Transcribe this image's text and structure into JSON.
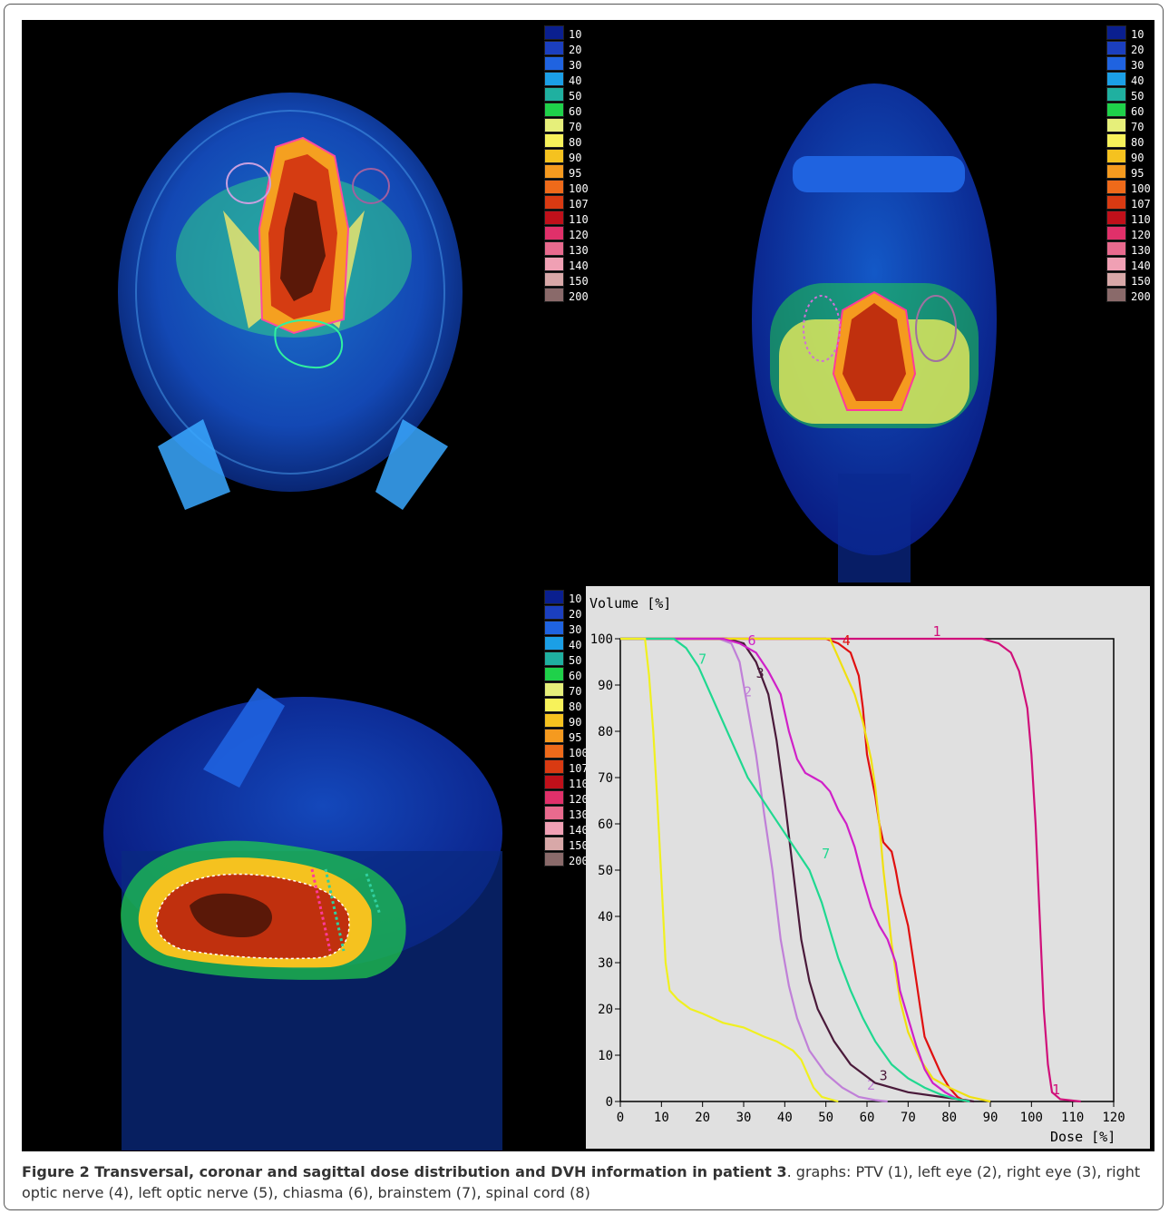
{
  "figure": {
    "legend_levels": [
      "10",
      "20",
      "30",
      "40",
      "50",
      "60",
      "70",
      "80",
      "90",
      "95",
      "100",
      "107",
      "110",
      "120",
      "130",
      "140",
      "150",
      "200"
    ],
    "legend_colors": [
      "#0a1f8f",
      "#1b3fbf",
      "#1f63e0",
      "#1b9fe6",
      "#1fb0a0",
      "#1fd14a",
      "#e6ef7a",
      "#f7f25a",
      "#f5c21f",
      "#f59a1f",
      "#ee6a1a",
      "#d93a12",
      "#c0101a",
      "#e0306a",
      "#e86a8e",
      "#f0a0b4",
      "#d8a8a8",
      "#8a6a6a"
    ]
  },
  "chart_data": {
    "type": "line",
    "ylabel": "Volume [%]",
    "xlabel": "Dose [%]",
    "xlim": [
      0,
      120
    ],
    "ylim": [
      0,
      100
    ],
    "x_ticks": [
      0,
      10,
      20,
      30,
      40,
      50,
      60,
      70,
      80,
      90,
      100,
      110,
      120
    ],
    "y_ticks": [
      0,
      10,
      20,
      30,
      40,
      50,
      60,
      70,
      80,
      90,
      100
    ],
    "grid": false,
    "series": [
      {
        "name": "1",
        "color": "#d0107a",
        "label_at": [
          76,
          100
        ],
        "label_end": [
          105,
          1
        ],
        "points": [
          [
            0,
            100
          ],
          [
            78,
            100
          ],
          [
            88,
            100
          ],
          [
            92,
            99
          ],
          [
            95,
            97
          ],
          [
            97,
            93
          ],
          [
            99,
            85
          ],
          [
            100,
            75
          ],
          [
            101,
            60
          ],
          [
            102,
            40
          ],
          [
            103,
            20
          ],
          [
            104,
            8
          ],
          [
            105,
            2
          ],
          [
            107,
            0.5
          ],
          [
            112,
            0
          ]
        ]
      },
      {
        "name": "2",
        "color": "#c080d8",
        "label_at": [
          30,
          87
        ],
        "label_end": [
          60,
          2
        ],
        "points": [
          [
            0,
            100
          ],
          [
            24,
            100
          ],
          [
            27,
            99
          ],
          [
            29,
            95
          ],
          [
            31,
            85
          ],
          [
            33,
            75
          ],
          [
            35,
            62
          ],
          [
            37,
            50
          ],
          [
            39,
            35
          ],
          [
            41,
            25
          ],
          [
            43,
            18
          ],
          [
            46,
            11
          ],
          [
            50,
            6
          ],
          [
            54,
            3
          ],
          [
            58,
            1
          ],
          [
            62,
            0.3
          ],
          [
            65,
            0
          ]
        ]
      },
      {
        "name": "3",
        "color": "#4a1a3a",
        "label_at": [
          33,
          91
        ],
        "label_end": [
          63,
          4
        ],
        "points": [
          [
            0,
            100
          ],
          [
            26,
            100
          ],
          [
            30,
            99
          ],
          [
            33,
            95
          ],
          [
            36,
            88
          ],
          [
            38,
            78
          ],
          [
            40,
            65
          ],
          [
            42,
            50
          ],
          [
            44,
            35
          ],
          [
            46,
            26
          ],
          [
            48,
            20
          ],
          [
            52,
            13
          ],
          [
            56,
            8
          ],
          [
            62,
            4
          ],
          [
            70,
            2
          ],
          [
            78,
            1
          ],
          [
            84,
            0.3
          ],
          [
            86,
            0
          ]
        ]
      },
      {
        "name": "4",
        "color": "#e01010",
        "label_at": [
          54,
          98
        ],
        "label_end": null,
        "points": [
          [
            0,
            100
          ],
          [
            50,
            100
          ],
          [
            53,
            99
          ],
          [
            56,
            97
          ],
          [
            58,
            92
          ],
          [
            59,
            85
          ],
          [
            60,
            75
          ],
          [
            62,
            66
          ],
          [
            63,
            60
          ],
          [
            64,
            56
          ],
          [
            66,
            54
          ],
          [
            67,
            50
          ],
          [
            68,
            45
          ],
          [
            70,
            38
          ],
          [
            71,
            32
          ],
          [
            72,
            26
          ],
          [
            73,
            20
          ],
          [
            74,
            14
          ],
          [
            76,
            10
          ],
          [
            78,
            6
          ],
          [
            80,
            3
          ],
          [
            82,
            1
          ],
          [
            84,
            0
          ]
        ]
      },
      {
        "name": "5",
        "color": "#f0e010",
        "label_at": null,
        "label_end": null,
        "points": [
          [
            0,
            100
          ],
          [
            51,
            100
          ],
          [
            53,
            96
          ],
          [
            55,
            92
          ],
          [
            57,
            88
          ],
          [
            59,
            82
          ],
          [
            60,
            78
          ],
          [
            61,
            74
          ],
          [
            62,
            68
          ],
          [
            63,
            60
          ],
          [
            64,
            50
          ],
          [
            65,
            42
          ],
          [
            66,
            34
          ],
          [
            67,
            28
          ],
          [
            68,
            22
          ],
          [
            70,
            15
          ],
          [
            73,
            9
          ],
          [
            76,
            5
          ],
          [
            80,
            3
          ],
          [
            85,
            1
          ],
          [
            90,
            0
          ]
        ]
      },
      {
        "name": "6",
        "color": "#d020c8",
        "label_at": [
          31,
          98
        ],
        "label_end": null,
        "points": [
          [
            0,
            100
          ],
          [
            25,
            100
          ],
          [
            29,
            99
          ],
          [
            33,
            97
          ],
          [
            36,
            93
          ],
          [
            39,
            88
          ],
          [
            41,
            80
          ],
          [
            43,
            74
          ],
          [
            45,
            71
          ],
          [
            47,
            70
          ],
          [
            49,
            69
          ],
          [
            51,
            67
          ],
          [
            53,
            63
          ],
          [
            55,
            60
          ],
          [
            57,
            55
          ],
          [
            59,
            48
          ],
          [
            61,
            42
          ],
          [
            63,
            38
          ],
          [
            65,
            35
          ],
          [
            67,
            30
          ],
          [
            68,
            24
          ],
          [
            70,
            18
          ],
          [
            72,
            12
          ],
          [
            74,
            7
          ],
          [
            76,
            4
          ],
          [
            79,
            2
          ],
          [
            82,
            0.5
          ],
          [
            85,
            0
          ]
        ]
      },
      {
        "name": "7",
        "color": "#20d890",
        "label_at": [
          19,
          94
        ],
        "label_end": [
          49,
          52
        ],
        "points": [
          [
            0,
            100
          ],
          [
            13,
            100
          ],
          [
            16,
            98
          ],
          [
            19,
            94
          ],
          [
            22,
            88
          ],
          [
            25,
            82
          ],
          [
            28,
            76
          ],
          [
            31,
            70
          ],
          [
            34,
            66
          ],
          [
            37,
            62
          ],
          [
            40,
            58
          ],
          [
            43,
            54
          ],
          [
            46,
            50
          ],
          [
            49,
            43
          ],
          [
            51,
            37
          ],
          [
            53,
            31
          ],
          [
            56,
            24
          ],
          [
            59,
            18
          ],
          [
            62,
            13
          ],
          [
            66,
            8
          ],
          [
            70,
            5
          ],
          [
            74,
            3
          ],
          [
            78,
            1.5
          ],
          [
            82,
            0.5
          ],
          [
            85,
            0
          ]
        ]
      },
      {
        "name": "8",
        "color": "#f0f020",
        "label_at": null,
        "label_end": null,
        "points": [
          [
            0,
            100
          ],
          [
            6,
            100
          ],
          [
            7,
            92
          ],
          [
            8,
            80
          ],
          [
            9,
            65
          ],
          [
            10,
            48
          ],
          [
            11,
            30
          ],
          [
            12,
            24
          ],
          [
            14,
            22
          ],
          [
            17,
            20
          ],
          [
            20,
            19
          ],
          [
            25,
            17
          ],
          [
            30,
            16
          ],
          [
            35,
            14
          ],
          [
            38,
            13
          ],
          [
            42,
            11
          ],
          [
            44,
            9
          ],
          [
            45,
            7
          ],
          [
            46,
            5
          ],
          [
            47,
            3
          ],
          [
            48,
            2
          ],
          [
            49,
            1
          ],
          [
            51,
            0.5
          ],
          [
            53,
            0
          ]
        ]
      }
    ]
  },
  "caption": {
    "title": "Figure 2 Transversal, coronar and sagittal dose distribution and DVH information in patient 3",
    "text": ". graphs: PTV (1), left eye (2), right eye (3), right optic nerve (4), left optic nerve (5), chiasma (6), brainstem (7), spinal cord (8)"
  }
}
